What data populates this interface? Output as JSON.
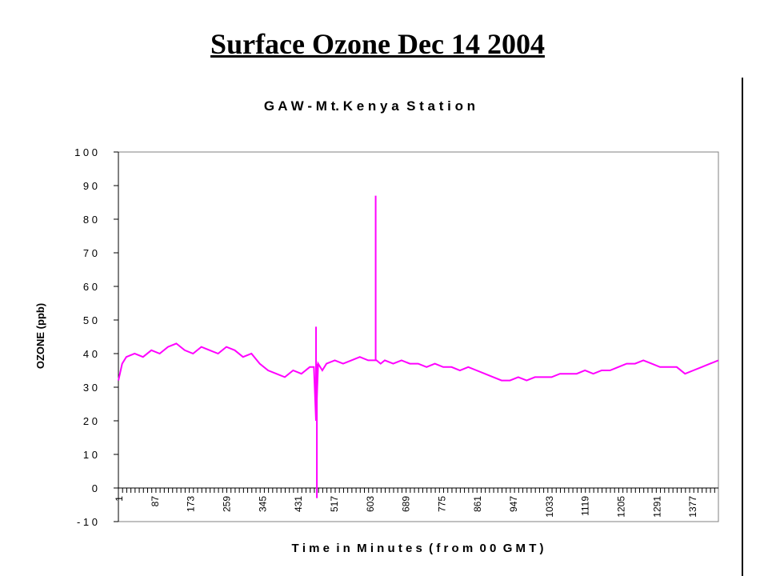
{
  "slide": {
    "title": "Surface Ozone Dec 14 2004"
  },
  "chart_data": {
    "type": "line",
    "title": "G A W - M t. K e n y a  S t a t i o n",
    "xlabel": "T i m e  i n  M i n u t e s  ( f r o m  0 0  G M T )",
    "ylabel": "OZONE (ppb)",
    "ylim": [
      -10,
      100
    ],
    "xlim": [
      1,
      1440
    ],
    "y_ticks": [
      -10,
      0,
      10,
      20,
      30,
      40,
      50,
      60,
      70,
      80,
      90,
      100
    ],
    "y_tick_labels": [
      "- 1 0",
      "0",
      "1 0",
      "2 0",
      "3 0",
      "4 0",
      "5 0",
      "6 0",
      "7 0",
      "8 0",
      "9 0",
      "1 0 0"
    ],
    "x_tick_labels": [
      "1",
      "87",
      "173",
      "259",
      "345",
      "431",
      "517",
      "603",
      "689",
      "775",
      "861",
      "947",
      "1033",
      "1119",
      "1205",
      "1291",
      "1377"
    ],
    "grid": false,
    "legend": "none",
    "colors": {
      "series": "#ff00ff",
      "axes": "#000000"
    },
    "series": [
      {
        "values_x": [
          1,
          10,
          20,
          40,
          60,
          80,
          100,
          120,
          140,
          160,
          180,
          200,
          220,
          240,
          260,
          280,
          300,
          320,
          340,
          360,
          380,
          400,
          420,
          440,
          460,
          470,
          475,
          480,
          490,
          500,
          520,
          540,
          560,
          580,
          600,
          620,
          630,
          640,
          660,
          680,
          700,
          720,
          740,
          760,
          780,
          800,
          820,
          840,
          860,
          880,
          900,
          920,
          940,
          960,
          980,
          1000,
          1020,
          1040,
          1060,
          1080,
          1100,
          1120,
          1140,
          1160,
          1180,
          1200,
          1220,
          1240,
          1260,
          1280,
          1300,
          1320,
          1340,
          1360,
          1380,
          1400,
          1420,
          1440
        ],
        "values_y": [
          32,
          37,
          39,
          40,
          39,
          41,
          40,
          42,
          43,
          41,
          40,
          42,
          41,
          40,
          42,
          41,
          39,
          40,
          37,
          35,
          34,
          33,
          35,
          34,
          36,
          36,
          20,
          37,
          35,
          37,
          38,
          37,
          38,
          39,
          38,
          38,
          37,
          38,
          37,
          38,
          37,
          37,
          36,
          37,
          36,
          36,
          35,
          36,
          35,
          34,
          33,
          32,
          32,
          33,
          32,
          33,
          33,
          33,
          34,
          34,
          34,
          35,
          34,
          35,
          35,
          36,
          37,
          37,
          38,
          37,
          36,
          36,
          36,
          34,
          35,
          36,
          37,
          38
        ],
        "spikes": [
          {
            "x": 475,
            "y": 48
          },
          {
            "x": 477,
            "y": -3
          },
          {
            "x": 618,
            "y": 87
          }
        ]
      }
    ]
  }
}
